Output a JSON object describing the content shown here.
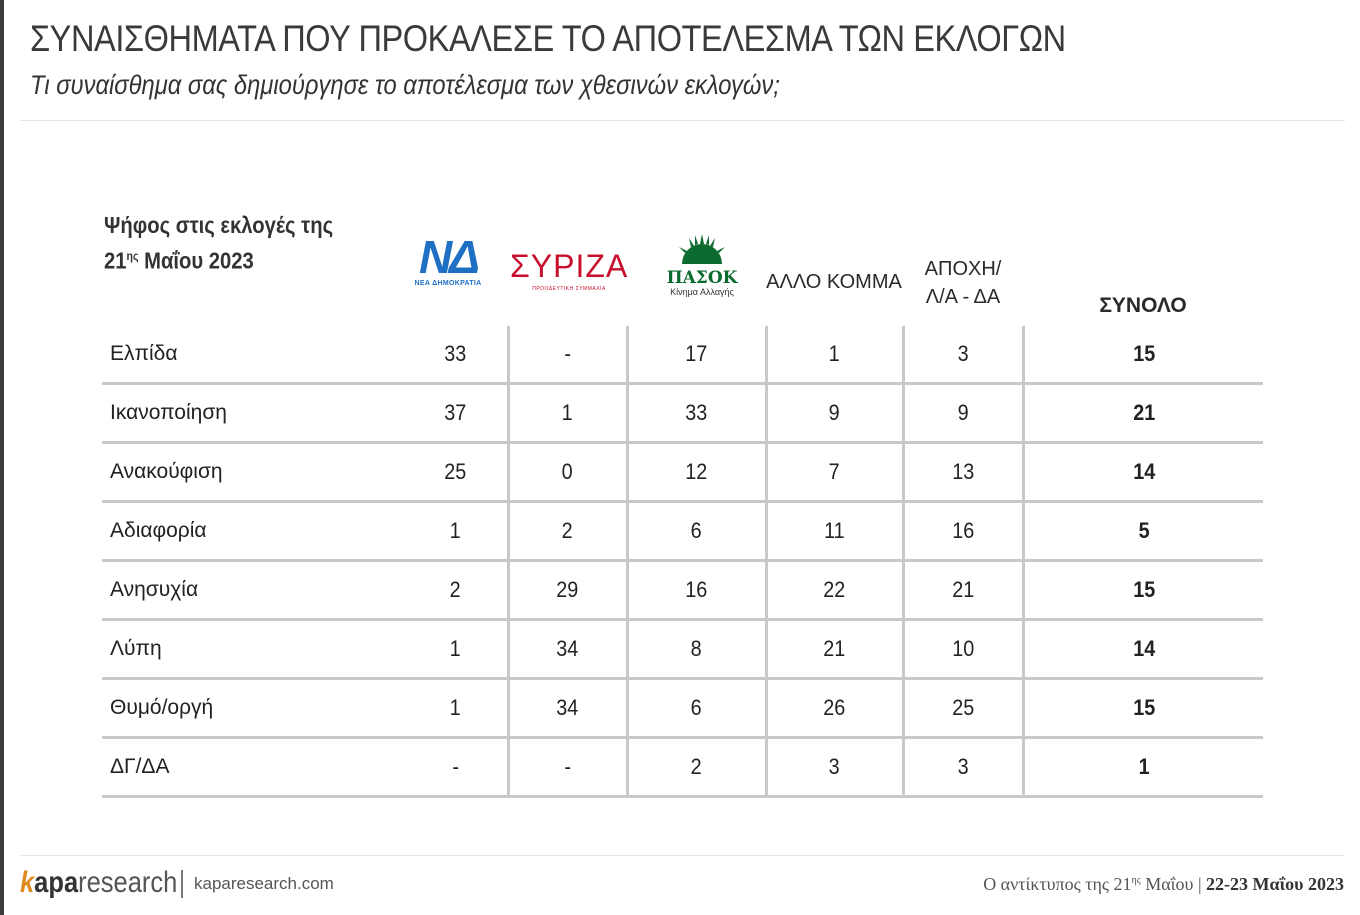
{
  "header": {
    "title": "ΣΥΝΑΙΣΘΗΜΑΤΑ ΠΟΥ ΠΡΟΚΑΛΕΣΕ ΤΟ ΑΠΟΤΕΛΕΣΜΑ ΤΩΝ ΕΚΛΟΓΩΝ",
    "question": "Τι συναίσθημα σας δημιούργησε το αποτέλεσμα των χθεσινών εκλογών;"
  },
  "table": {
    "row_header_line1": "Ψήφος στις εκλογές της",
    "row_header_line2_num": "21",
    "row_header_line2_sup": "ης",
    "row_header_line2_rest": " Μαΐου 2023",
    "columns": {
      "nd": {
        "logo_text": "ΝΔ",
        "logo_sub": "ΝΕΑ ΔΗΜΟΚΡΑΤΙΑ"
      },
      "syriza": {
        "logo_text": "ΣΥΡΙΖΑ",
        "logo_sub": "ΠΡΟΟΔΕΥΤΙΚΗ ΣΥΜΜΑΧΙΑ"
      },
      "pasok": {
        "logo_text": "ΠΑΣΟΚ",
        "logo_sub": "Κίνημα Αλλαγής"
      },
      "other": "ΑΛΛΟ ΚΟΜΜΑ",
      "abstain_line1": "ΑΠΟΧΗ/",
      "abstain_line2": "Λ/Α - ΔΑ",
      "total": "ΣΥΝΟΛΟ"
    },
    "rows": [
      {
        "label": "Ελπίδα",
        "values": [
          "33",
          "-",
          "17",
          "1",
          "3",
          "15"
        ]
      },
      {
        "label": "Ικανοποίηση",
        "values": [
          "37",
          "1",
          "33",
          "9",
          "9",
          "21"
        ]
      },
      {
        "label": "Ανακούφιση",
        "values": [
          "25",
          "0",
          "12",
          "7",
          "13",
          "14"
        ]
      },
      {
        "label": "Αδιαφορία",
        "values": [
          "1",
          "2",
          "6",
          "11",
          "16",
          "5"
        ]
      },
      {
        "label": "Ανησυχία",
        "values": [
          "2",
          "29",
          "16",
          "22",
          "21",
          "15"
        ]
      },
      {
        "label": "Λύπη",
        "values": [
          "1",
          "34",
          "8",
          "21",
          "10",
          "14"
        ]
      },
      {
        "label": "Θυμό/οργή",
        "values": [
          "1",
          "34",
          "6",
          "26",
          "25",
          "15"
        ]
      },
      {
        "label": "ΔΓ/ΔΑ",
        "values": [
          "-",
          "-",
          "2",
          "3",
          "3",
          "1"
        ]
      }
    ]
  },
  "footer": {
    "brand_k": "k",
    "brand_kapa": "apa",
    "brand_research": "research",
    "url": "kaparesearch.com",
    "note_prefix": "Ο αντίκτυπος της 21",
    "note_sup": "ης",
    "note_suffix": " Μαΐου | ",
    "date": "22-23 Μαΐου 2023"
  },
  "colors": {
    "nd_blue": "#1f6fc4",
    "syriza_red": "#c8102e",
    "pasok_green": "#0b6b2e",
    "kapa_orange": "#e08a1e"
  }
}
